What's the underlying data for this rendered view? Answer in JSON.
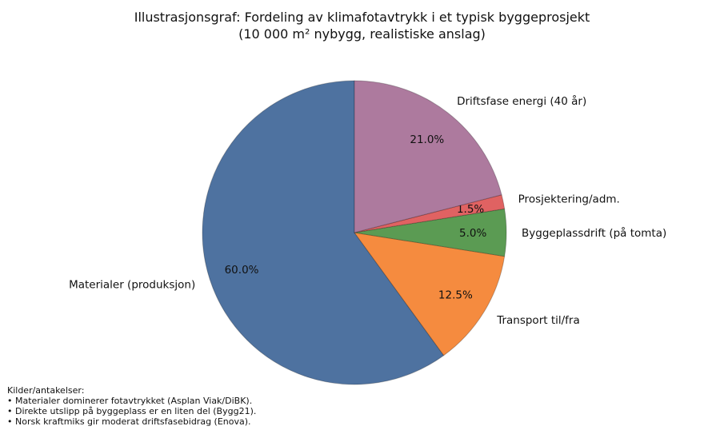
{
  "chart_data": {
    "type": "pie",
    "title": "Illustrasjonsgraf: Fordeling av klimafotavtrykk i et typisk byggeprosjekt",
    "subtitle": "(10 000 m² nybygg, realistiske anslag)",
    "start_angle_deg": 90,
    "direction": "counterclockwise",
    "slices": [
      {
        "label": "Materialer (produksjon)",
        "value": 60.0,
        "pct_label": "60.0%",
        "color": "#4e72a0"
      },
      {
        "label": "Transport til/fra",
        "value": 12.5,
        "pct_label": "12.5%",
        "color": "#f58b3f"
      },
      {
        "label": "Byggeplassdrift (på tomta)",
        "value": 5.0,
        "pct_label": "5.0%",
        "color": "#5b9b53"
      },
      {
        "label": "Prosjektering/adm.",
        "value": 1.5,
        "pct_label": "1.5%",
        "color": "#e06262"
      },
      {
        "label": "Driftsfase energi (40 år)",
        "value": 21.0,
        "pct_label": "21.0%",
        "color": "#ad7a9e"
      }
    ]
  },
  "notes": {
    "heading": "Kilder/antakelser:",
    "items": [
      "• Materialer dominerer fotavtrykket (Asplan Viak/DiBK).",
      "• Direkte utslipp på byggeplass er en liten del (Bygg21).",
      "• Norsk kraftmiks gir moderat driftsfasebidrag (Enova)."
    ]
  }
}
